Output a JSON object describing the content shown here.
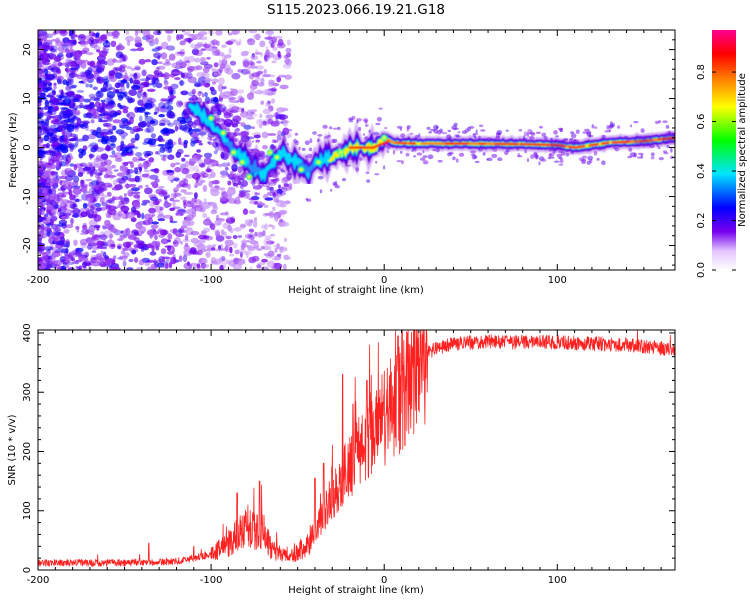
{
  "chart_data": [
    {
      "type": "heatmap",
      "title": "S115.2023.066.19.21.G18",
      "xlabel": "Height of straight line (km)",
      "ylabel": "Frequency (Hz)",
      "xlim": [
        -200,
        168
      ],
      "ylim": [
        -25,
        24
      ],
      "x_ticks": [
        -200,
        -100,
        0,
        100
      ],
      "x_tick_labels": [
        "-200",
        "-100",
        "0",
        "100"
      ],
      "y_ticks": [
        -20,
        -10,
        0,
        10,
        20
      ],
      "y_tick_labels": [
        "-20",
        "-10",
        "0",
        "10",
        "20"
      ],
      "colorbar": {
        "label": "Normalized spectral amplitude",
        "range": [
          0,
          0.97
        ],
        "ticks": [
          0.0,
          0.2,
          0.4,
          0.6,
          0.8
        ],
        "tick_labels": [
          "0.0",
          "0.2",
          "0.4",
          "0.6",
          "0.8"
        ],
        "colors": [
          "#ffffff",
          "#7700ee",
          "#0000ff",
          "#00e5ff",
          "#00ff00",
          "#ffff00",
          "#ff7a00",
          "#ff0000",
          "#ff0090"
        ]
      },
      "ridge": [
        [
          -110,
          8
        ],
        [
          -100,
          5
        ],
        [
          -90,
          1
        ],
        [
          -80,
          -3
        ],
        [
          -70,
          -6
        ],
        [
          -60,
          -1
        ],
        [
          -50,
          -3
        ],
        [
          -45,
          -5
        ],
        [
          -40,
          -3
        ],
        [
          -30,
          -2
        ],
        [
          -20,
          0
        ],
        [
          -10,
          0
        ],
        [
          -5,
          0
        ],
        [
          0,
          2
        ],
        [
          5,
          1
        ],
        [
          20,
          0.8
        ],
        [
          50,
          0.8
        ],
        [
          80,
          0.7
        ],
        [
          100,
          0.5
        ],
        [
          110,
          0
        ],
        [
          130,
          1
        ],
        [
          150,
          1.3
        ],
        [
          168,
          2
        ]
      ],
      "notes": "noisy scattered energy for heights below about -60 km; coherent ridge near 0-1 Hz above 0 km"
    },
    {
      "type": "line",
      "title": "",
      "xlabel": "Height of straight line (km)",
      "ylabel": "SNR (10 * v/v)",
      "xlim": [
        -200,
        168
      ],
      "ylim": [
        0,
        405
      ],
      "x_ticks": [
        -200,
        -100,
        0,
        100
      ],
      "x_tick_labels": [
        "-200",
        "-100",
        "0",
        "100"
      ],
      "y_ticks": [
        0,
        100,
        200,
        300,
        400
      ],
      "y_tick_labels": [
        "0",
        "100",
        "200",
        "300",
        "400"
      ],
      "series": [
        {
          "name": "SNR",
          "color": "#ff2020",
          "profile": [
            [
              -200,
              12
            ],
            [
              -150,
              12
            ],
            [
              -120,
              15
            ],
            [
              -100,
              25
            ],
            [
              -90,
              45
            ],
            [
              -80,
              70
            ],
            [
              -70,
              65
            ],
            [
              -65,
              35
            ],
            [
              -55,
              20
            ],
            [
              -45,
              40
            ],
            [
              -35,
              95
            ],
            [
              -25,
              150
            ],
            [
              -15,
              200
            ],
            [
              -5,
              240
            ],
            [
              5,
              275
            ],
            [
              10,
              290
            ],
            [
              15,
              325
            ],
            [
              20,
              350
            ],
            [
              25,
              365
            ],
            [
              30,
              375
            ],
            [
              40,
              382
            ],
            [
              60,
              385
            ],
            [
              100,
              384
            ],
            [
              140,
              380
            ],
            [
              168,
              372
            ]
          ],
          "peaks": [
            [
              -136,
              45
            ],
            [
              -110,
              40
            ],
            [
              -85,
              130
            ],
            [
              -72,
              150
            ],
            [
              -40,
              155
            ],
            [
              -35,
              180
            ],
            [
              -24,
              330
            ],
            [
              -18,
              280
            ],
            [
              -10,
              320
            ],
            [
              8,
              395
            ],
            [
              12,
              210
            ]
          ]
        }
      ]
    }
  ]
}
